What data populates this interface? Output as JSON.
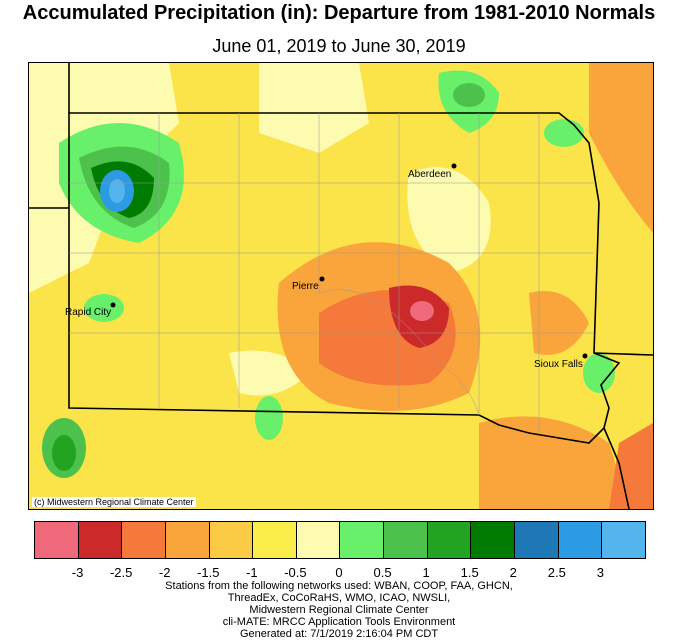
{
  "title": "Accumulated Precipitation (in): Departure from 1981-2010 Normals",
  "subtitle": "June 01, 2019 to June 30, 2019",
  "copyright": "(c) Midwestern Regional Climate Center",
  "cities": [
    {
      "name": "Aberdeen"
    },
    {
      "name": "Pierre"
    },
    {
      "name": "Rapid City"
    },
    {
      "name": "Sioux Falls"
    }
  ],
  "legend": {
    "colors": [
      "#f0697b",
      "#cc2a2a",
      "#f5793a",
      "#f9a53c",
      "#fccb45",
      "#fbee4b",
      "#fdfbb0",
      "#69f06a",
      "#4cc24c",
      "#22a322",
      "#007b00",
      "#1e78b6",
      "#2d9be3",
      "#54b4ee"
    ],
    "tick_labels": [
      "-3",
      "-2.5",
      "-2",
      "-1.5",
      "-1",
      "-0.5",
      "0",
      "0.5",
      "1",
      "1.5",
      "2",
      "2.5",
      "3"
    ]
  },
  "footer": [
    "Stations from the following networks used: WBAN, COOP, FAA, GHCN,",
    "ThreadEx, CoCoRaHS, WMO, ICAO, NWSLI,",
    "Midwestern Regional Climate Center",
    "cli-MATE: MRCC Application Tools Environment",
    "Generated at: 7/1/2019 2:16:04 PM CDT"
  ]
}
